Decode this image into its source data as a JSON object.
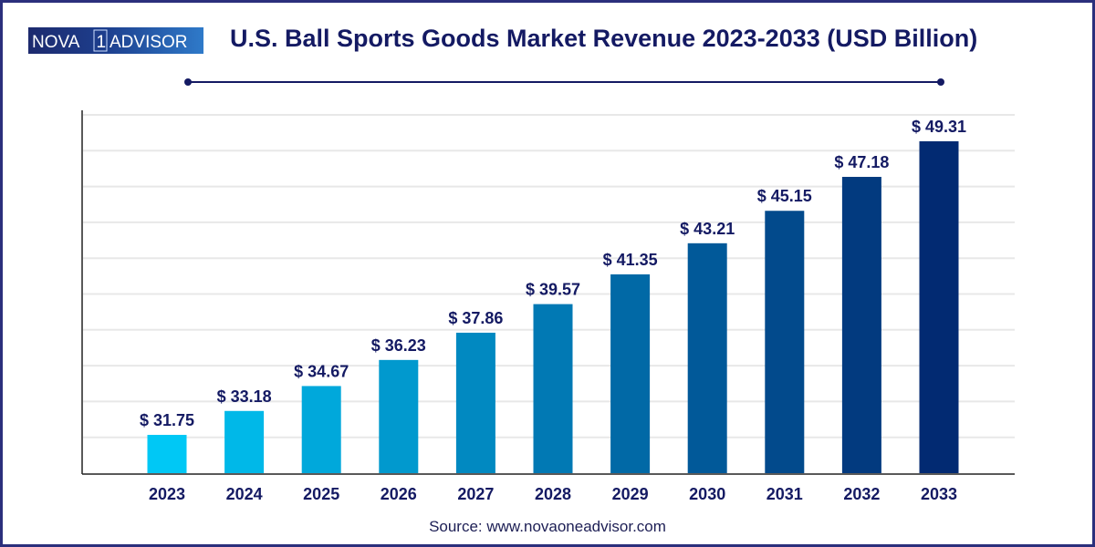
{
  "logo": {
    "text": "NOVA 1 ADVISOR"
  },
  "title": "U.S. Ball Sports Goods Market Revenue 2023-2033 (USD Billion)",
  "source": "Source: www.novaoneadvisor.com",
  "colors": {
    "frame": "#2b2f7c",
    "text": "#141a63",
    "bar_start": "#00c8f5",
    "bar_end": "#022a72"
  },
  "chart_data": {
    "type": "bar",
    "title": "U.S. Ball Sports Goods Market Revenue 2023-2033 (USD Billion)",
    "categories": [
      "2023",
      "2024",
      "2025",
      "2026",
      "2027",
      "2028",
      "2029",
      "2030",
      "2031",
      "2032",
      "2033"
    ],
    "values": [
      31.75,
      33.18,
      34.67,
      36.23,
      37.86,
      39.57,
      41.35,
      43.21,
      45.15,
      47.18,
      49.31
    ],
    "value_labels": [
      "$ 31.75",
      "$ 33.18",
      "$ 34.67",
      "$ 36.23",
      "$ 37.86",
      "$ 39.57",
      "$ 41.35",
      "$ 43.21",
      "$ 45.15",
      "$ 47.18",
      "$ 49.31"
    ],
    "xlabel": "",
    "ylabel": "",
    "ylim": [
      29.46,
      51.2
    ],
    "grid": true,
    "legend": "none"
  }
}
